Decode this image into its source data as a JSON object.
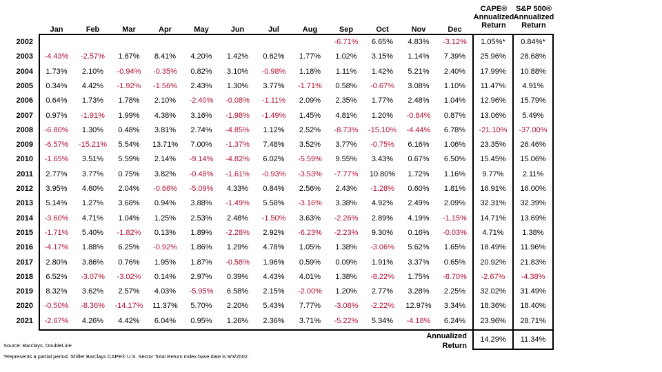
{
  "header": {
    "months": [
      "Jan",
      "Feb",
      "Mar",
      "Apr",
      "May",
      "Jun",
      "Jul",
      "Aug",
      "Sep",
      "Oct",
      "Nov",
      "Dec"
    ],
    "cape": [
      "CAPE®",
      "Annualized",
      "Return"
    ],
    "sp500": [
      "S&P 500®",
      "Annualized",
      "Return"
    ]
  },
  "rows": [
    {
      "year": "2002",
      "values": [
        "",
        "",
        "",
        "",
        "",
        "",
        "",
        "",
        "-6.71%",
        "6.65%",
        "4.83%",
        "-3.12%"
      ],
      "cape": "1.05%*",
      "sp500": "0.84%*"
    },
    {
      "year": "2003",
      "values": [
        "-4.43%",
        "-2.57%",
        "1.87%",
        "8.41%",
        "4.20%",
        "1.42%",
        "0.62%",
        "1.77%",
        "1.02%",
        "3.15%",
        "1.14%",
        "7.39%"
      ],
      "cape": "25.96%",
      "sp500": "28.68%"
    },
    {
      "year": "2004",
      "values": [
        "1.73%",
        "2.10%",
        "-0.94%",
        "-0.35%",
        "0.82%",
        "3.10%",
        "-0.98%",
        "1.18%",
        "1.11%",
        "1.42%",
        "5.21%",
        "2.40%"
      ],
      "cape": "17.99%",
      "sp500": "10.88%"
    },
    {
      "year": "2005",
      "values": [
        "0.34%",
        "4.42%",
        "-1.92%",
        "-1.56%",
        "2.43%",
        "1.30%",
        "3.77%",
        "-1.71%",
        "0.58%",
        "-0.67%",
        "3.08%",
        "1.10%"
      ],
      "cape": "11.47%",
      "sp500": "4.91%"
    },
    {
      "year": "2006",
      "values": [
        "0.64%",
        "1.73%",
        "1.78%",
        "2.10%",
        "-2.40%",
        "-0.08%",
        "-1.11%",
        "2.09%",
        "2.35%",
        "1.77%",
        "2.48%",
        "1.04%"
      ],
      "cape": "12.96%",
      "sp500": "15.79%"
    },
    {
      "year": "2007",
      "values": [
        "0.97%",
        "-1.91%",
        "1.99%",
        "4.38%",
        "3.16%",
        "-1.98%",
        "-1.49%",
        "1.45%",
        "4.81%",
        "1.20%",
        "-0.84%",
        "0.87%"
      ],
      "cape": "13.06%",
      "sp500": "5.49%"
    },
    {
      "year": "2008",
      "values": [
        "-6.80%",
        "1.30%",
        "0.48%",
        "3.81%",
        "2.74%",
        "-4.85%",
        "1.12%",
        "2.52%",
        "-8.73%",
        "-15.10%",
        "-4.44%",
        "6.78%"
      ],
      "cape": "-21.10%",
      "sp500": "-37.00%"
    },
    {
      "year": "2009",
      "values": [
        "-6.57%",
        "-15.21%",
        "5.54%",
        "13.71%",
        "7.00%",
        "-1.37%",
        "7.48%",
        "3.52%",
        "3.77%",
        "-0.75%",
        "6.16%",
        "1.06%"
      ],
      "cape": "23.35%",
      "sp500": "26.46%"
    },
    {
      "year": "2010",
      "values": [
        "-1.65%",
        "3.51%",
        "5.59%",
        "2.14%",
        "-9.14%",
        "-4.82%",
        "6.02%",
        "-5.59%",
        "9.55%",
        "3.43%",
        "0.67%",
        "6.50%"
      ],
      "cape": "15.45%",
      "sp500": "15.06%"
    },
    {
      "year": "2011",
      "values": [
        "2.77%",
        "3.77%",
        "0.75%",
        "3.82%",
        "-0.48%",
        "-1.61%",
        "-0.93%",
        "-3.53%",
        "-7.77%",
        "10.80%",
        "1.72%",
        "1.16%"
      ],
      "cape": "9.77%",
      "sp500": "2.11%"
    },
    {
      "year": "2012",
      "values": [
        "3.95%",
        "4.60%",
        "2.04%",
        "-0.66%",
        "-5.09%",
        "4.33%",
        "0.84%",
        "2.56%",
        "2.43%",
        "-1.28%",
        "0.60%",
        "1.81%"
      ],
      "cape": "16.91%",
      "sp500": "16.00%"
    },
    {
      "year": "2013",
      "values": [
        "5.14%",
        "1.27%",
        "3.68%",
        "0.94%",
        "3.88%",
        "-1.49%",
        "5.58%",
        "-3.16%",
        "3.38%",
        "4.92%",
        "2.49%",
        "2.09%"
      ],
      "cape": "32.31%",
      "sp500": "32.39%"
    },
    {
      "year": "2014",
      "values": [
        "-3.60%",
        "4.71%",
        "1.04%",
        "1.25%",
        "2.53%",
        "2.48%",
        "-1.50%",
        "3.63%",
        "-2.26%",
        "2.89%",
        "4.19%",
        "-1.15%"
      ],
      "cape": "14.71%",
      "sp500": "13.69%"
    },
    {
      "year": "2015",
      "values": [
        "-1.71%",
        "5.40%",
        "-1.82%",
        "0.13%",
        "1.89%",
        "-2.28%",
        "2.92%",
        "-6.23%",
        "-2.23%",
        "9.30%",
        "0.16%",
        "-0.03%"
      ],
      "cape": "4.71%",
      "sp500": "1.38%"
    },
    {
      "year": "2016",
      "values": [
        "-4.17%",
        "1.88%",
        "6.25%",
        "-0.92%",
        "1.86%",
        "1.29%",
        "4.78%",
        "1.05%",
        "1.38%",
        "-3.06%",
        "5.62%",
        "1.65%"
      ],
      "cape": "18.49%",
      "sp500": "11.96%"
    },
    {
      "year": "2017",
      "values": [
        "2.80%",
        "3.86%",
        "0.76%",
        "1.95%",
        "1.87%",
        "-0.58%",
        "1.96%",
        "0.59%",
        "0.09%",
        "1.91%",
        "3.37%",
        "0.65%"
      ],
      "cape": "20.92%",
      "sp500": "21.83%"
    },
    {
      "year": "2018",
      "values": [
        "6.52%",
        "-3.07%",
        "-3.02%",
        "0.14%",
        "2.97%",
        "0.39%",
        "4.43%",
        "4.01%",
        "1.38%",
        "-8.22%",
        "1.75%",
        "-8.70%"
      ],
      "cape": "-2.67%",
      "sp500": "-4.38%"
    },
    {
      "year": "2019",
      "values": [
        "8.32%",
        "3.62%",
        "2.57%",
        "4.03%",
        "-5.95%",
        "6.58%",
        "2.15%",
        "-2.00%",
        "1.20%",
        "2.77%",
        "3.28%",
        "2.25%"
      ],
      "cape": "32.02%",
      "sp500": "31.49%"
    },
    {
      "year": "2020",
      "values": [
        "-0.50%",
        "-8.36%",
        "-14.17%",
        "11.37%",
        "5.70%",
        "2.20%",
        "5.43%",
        "7.77%",
        "-3.08%",
        "-2.22%",
        "12.97%",
        "3.34%"
      ],
      "cape": "18.36%",
      "sp500": "18.40%"
    },
    {
      "year": "2021",
      "values": [
        "-2.67%",
        "4.26%",
        "4.42%",
        "6.04%",
        "0.95%",
        "1.26%",
        "2.36%",
        "3.71%",
        "-5.22%",
        "5.34%",
        "-4.18%",
        "6.24%"
      ],
      "cape": "23.96%",
      "sp500": "28.71%"
    }
  ],
  "summary": {
    "label": [
      "Annualized",
      "Return"
    ],
    "cape": "14.29%",
    "sp500": "11.34%"
  },
  "footnotes": {
    "source": "Source: Barclays, DoubleLine",
    "note": "*Represents a partial period. Shiller Barclays CAPE® U.S. Sector Total Return Index base date is 9/3/2002."
  },
  "colors": {
    "negative": "#b01030",
    "positive": "#000000"
  }
}
